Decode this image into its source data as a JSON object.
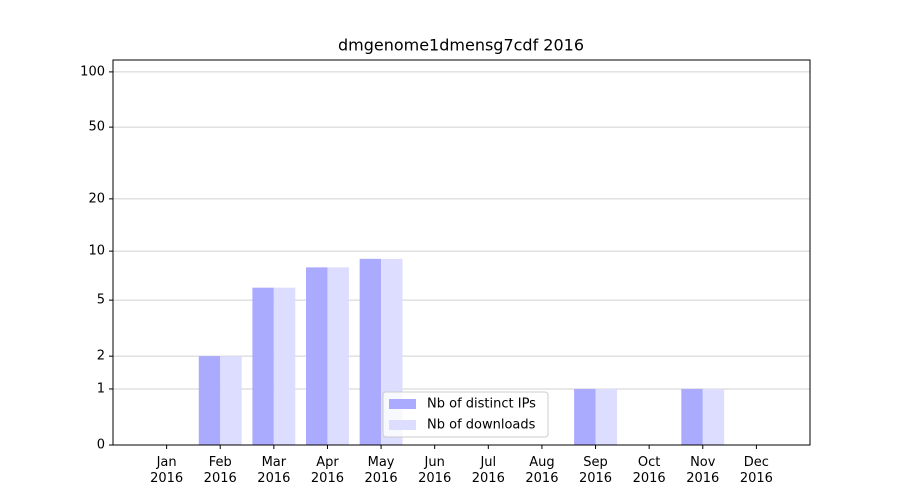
{
  "chart_data": {
    "type": "bar",
    "title": "dmgenome1dmensg7cdf 2016",
    "categories": [
      "Jan 2016",
      "Feb 2016",
      "Mar 2016",
      "Apr 2016",
      "May 2016",
      "Jun 2016",
      "Jul 2016",
      "Aug 2016",
      "Sep 2016",
      "Oct 2016",
      "Nov 2016",
      "Dec 2016"
    ],
    "series": [
      {
        "name": "Nb of distinct IPs",
        "color": "#aaaaff",
        "values": [
          0,
          2,
          6,
          8,
          9,
          0,
          0,
          0,
          1,
          0,
          1,
          0
        ]
      },
      {
        "name": "Nb of downloads",
        "color": "#ddddff",
        "values": [
          0,
          2,
          6,
          8,
          9,
          0,
          0,
          0,
          1,
          0,
          1,
          0
        ]
      }
    ],
    "yscale": "log1p",
    "ylim": [
      0,
      116
    ],
    "yticks": [
      0,
      1,
      2,
      5,
      10,
      20,
      50,
      100
    ],
    "grid": true,
    "legend": "lower center"
  }
}
